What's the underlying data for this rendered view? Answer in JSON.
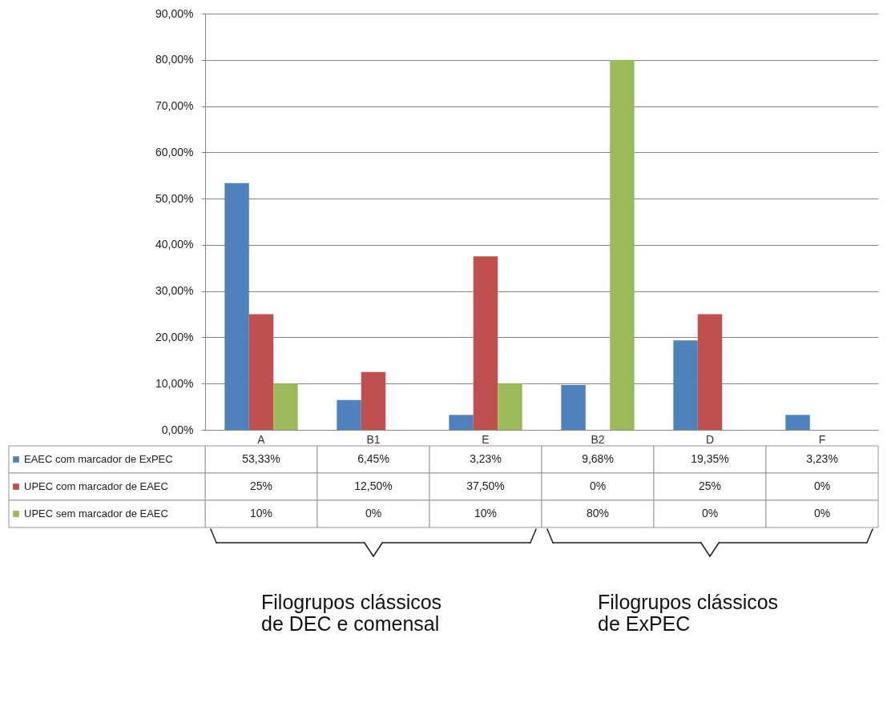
{
  "chart_data": {
    "type": "bar",
    "categories": [
      "A",
      "B1",
      "E",
      "B2",
      "D",
      "F"
    ],
    "series": [
      {
        "name": "EAEC com marcador de ExPEC",
        "color": "#4f81bd",
        "values": [
          53.33,
          6.45,
          3.23,
          9.68,
          19.35,
          3.23
        ],
        "value_labels": [
          "53,33%",
          "6,45%",
          "3,23%",
          "9,68%",
          "19,35%",
          "3,23%"
        ]
      },
      {
        "name": "UPEC com marcador de EAEC",
        "color": "#c0504d",
        "values": [
          25,
          12.5,
          37.5,
          0,
          25,
          0
        ],
        "value_labels": [
          "25%",
          "12,50%",
          "37,50%",
          "0%",
          "25%",
          "0%"
        ]
      },
      {
        "name": "UPEC sem marcador de EAEC",
        "color": "#9bbb59",
        "values": [
          10,
          0,
          10,
          80,
          0,
          0
        ],
        "value_labels": [
          "10%",
          "0%",
          "10%",
          "80%",
          "0%",
          "0%"
        ]
      }
    ],
    "ylim": [
      0,
      90
    ],
    "yticks": [
      {
        "value": 0,
        "label": "0,00%"
      },
      {
        "value": 10,
        "label": "10,00%"
      },
      {
        "value": 20,
        "label": "20,00%"
      },
      {
        "value": 30,
        "label": "30,00%"
      },
      {
        "value": 40,
        "label": "40,00%"
      },
      {
        "value": 50,
        "label": "50,00%"
      },
      {
        "value": 60,
        "label": "60,00%"
      },
      {
        "value": 70,
        "label": "70,00%"
      },
      {
        "value": 80,
        "label": "80,00%"
      },
      {
        "value": 90,
        "label": "90,00%"
      }
    ],
    "grid": "y",
    "legend": "bottom left",
    "annotations": [
      "Filogrupos clássicos\nde DEC e comensal",
      "Filogrupos clássicos\nde ExPEC"
    ]
  }
}
